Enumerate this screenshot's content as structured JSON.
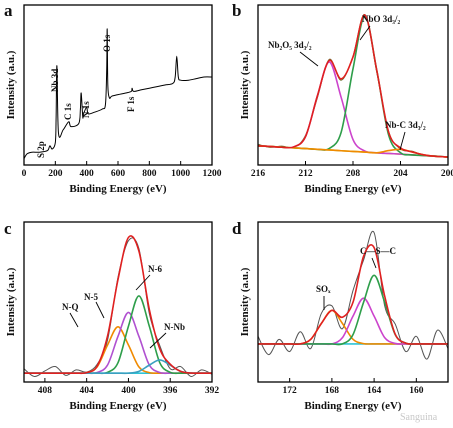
{
  "chart_data": [
    {
      "type": "line",
      "panel": "a",
      "xlabel": "Binding Energy (eV)",
      "ylabel": "Intensity (a.u.)",
      "xlim": [
        0,
        1200
      ],
      "xticks": [
        0,
        200,
        400,
        600,
        800,
        1000,
        1200
      ],
      "ylim": [
        0,
        100
      ],
      "annotations": [
        "S 2p",
        "Nb 3d",
        "C 1s",
        "N 1s",
        "O 1s",
        "F 1s"
      ],
      "x": [
        0,
        20,
        50,
        100,
        150,
        165,
        180,
        200,
        205,
        210,
        220,
        250,
        285,
        300,
        350,
        360,
        365,
        375,
        380,
        400,
        410,
        450,
        500,
        520,
        528,
        531,
        535,
        545,
        560,
        600,
        650,
        685,
        690,
        700,
        750,
        800,
        850,
        900,
        950,
        965,
        975,
        985,
        1000,
        1050,
        1100,
        1150,
        1200
      ],
      "series": [
        {
          "color": "#000000",
          "values": [
            4,
            7,
            8,
            8,
            9,
            12,
            10,
            14,
            30,
            62,
            20,
            22,
            27,
            24,
            26,
            35,
            45,
            30,
            32,
            36,
            32,
            33,
            35,
            38,
            60,
            85,
            50,
            42,
            43,
            44,
            45,
            46,
            48,
            46,
            47,
            48,
            49,
            50,
            51,
            55,
            68,
            55,
            53,
            53,
            54,
            55,
            55
          ]
        }
      ]
    },
    {
      "type": "line",
      "panel": "b",
      "xlabel": "Binding Energy (eV)",
      "ylabel": "Intensity (a.u.)",
      "xlim": [
        216,
        200
      ],
      "xticks": [
        216,
        212,
        208,
        204,
        200
      ],
      "ylim": [
        0,
        100
      ],
      "annotations": [
        "Nb₂O₅ 3d₃/₂",
        "NbO 3d₃/₂",
        "Nb-C 3d₃/₂"
      ],
      "x": [
        216,
        215,
        214,
        213,
        212,
        211,
        210,
        209,
        208,
        207,
        206,
        205,
        204,
        203,
        202,
        201,
        200
      ],
      "series": [
        {
          "color": "#6b6b2a",
          "values": [
            13,
            11,
            11.8,
            11,
            18.5,
            42,
            66,
            53,
            68,
            94,
            58,
            21,
            10,
            8.6,
            6,
            5.8,
            4.6
          ]
        },
        {
          "color": "#c8b400",
          "values": [
            12,
            11.6,
            11.1,
            10.7,
            10.3,
            9.8,
            9.4,
            8.9,
            8.5,
            8.1,
            7.6,
            7.2,
            6.8,
            6.3,
            5.9,
            5.4,
            5
          ]
        },
        {
          "color": "#cc44cc",
          "values": [
            12,
            11.6,
            11.1,
            11.3,
            17.7,
            43.2,
            64.4,
            42.3,
            15.9,
            8.7,
            7.6,
            7.2,
            6.8,
            6.3,
            5.9,
            5.4,
            5
          ]
        },
        {
          "color": "#2e9e4a",
          "values": [
            12,
            11.6,
            11.1,
            10.7,
            10.3,
            9.8,
            10.3,
            20.4,
            60.1,
            93.1,
            59.2,
            18.7,
            7.7,
            6.3,
            5.9,
            5.4,
            5
          ]
        },
        {
          "color": "#f08a00",
          "values": [
            12,
            11.6,
            11.1,
            10.7,
            10.3,
            9.8,
            9.4,
            8.9,
            8.5,
            8.1,
            7.6,
            9.0,
            9.8,
            8.1,
            6.3,
            5.4,
            5
          ]
        },
        {
          "color": "#e02020",
          "values": [
            12,
            11.6,
            11.1,
            11.3,
            17.7,
            43.2,
            65.3,
            53.8,
            67.5,
            93.7,
            59.2,
            20.5,
            10.7,
            8.1,
            6.3,
            5.4,
            5
          ]
        }
      ]
    },
    {
      "type": "line",
      "panel": "c",
      "xlabel": "Binding Energy (eV)",
      "ylabel": "Intensity (a.u.)",
      "xlim": [
        410,
        392
      ],
      "xticks": [
        408,
        404,
        400,
        396,
        392
      ],
      "ylim": [
        0,
        145
      ],
      "annotations": [
        "N-5",
        "N-6",
        "N-Q",
        "N-Nb"
      ],
      "x": [
        410,
        409,
        408,
        407,
        406,
        405,
        404,
        403,
        402,
        401,
        400,
        399,
        398,
        397,
        396,
        395,
        394,
        393,
        392
      ],
      "series": [
        {
          "color": "#555555",
          "values": [
            12,
            5,
            10,
            14,
            6,
            11,
            9,
            16,
            38,
            95,
            128,
            121,
            62,
            33,
            12,
            14,
            5,
            11,
            7
          ]
        },
        {
          "color": "#2ec4d6",
          "values": [
            8,
            8,
            8,
            8,
            8,
            8,
            8,
            8,
            8,
            8,
            8,
            8,
            8,
            8,
            8,
            8,
            8,
            8,
            8
          ]
        },
        {
          "color": "#f08a00",
          "values": [
            8,
            8,
            8,
            8,
            8,
            8,
            8.5,
            13.7,
            33.5,
            50,
            33.5,
            13.7,
            8.5,
            8,
            8,
            8,
            8,
            8,
            8
          ]
        },
        {
          "color": "#b050d0",
          "values": [
            8,
            8,
            8,
            8,
            8,
            8,
            8,
            8.6,
            15.4,
            41.4,
            63,
            41.4,
            15.4,
            8.6,
            8,
            8,
            8,
            8,
            8
          ]
        },
        {
          "color": "#2e9e4a",
          "values": [
            8,
            8,
            8,
            8,
            8,
            8,
            8,
            8,
            8.8,
            17.5,
            50.5,
            78,
            50.5,
            17.5,
            8.8,
            8,
            8,
            8,
            8
          ]
        },
        {
          "color": "#3aa0c0",
          "values": [
            8,
            8,
            8,
            8,
            8,
            8,
            8,
            8,
            8,
            8,
            8,
            9.6,
            15.3,
            20,
            15.3,
            9.6,
            8.1,
            8,
            8
          ]
        },
        {
          "color": "#e02020",
          "values": [
            8,
            8,
            8,
            8,
            8,
            8,
            8.5,
            14.3,
            41.7,
            92.9,
            131,
            118.7,
            65.7,
            30.1,
            16.1,
            9.6,
            8.1,
            8,
            8
          ]
        }
      ]
    },
    {
      "type": "line",
      "panel": "d",
      "xlabel": "Binding Energy (eV)",
      "ylabel": "Intensity (a.u.)",
      "xlim": [
        175,
        157
      ],
      "xticks": [
        172,
        168,
        164,
        160
      ],
      "ylim": [
        0,
        105
      ],
      "annotations": [
        "SOₓ",
        "C—S—C"
      ],
      "x": [
        175,
        174,
        173,
        172,
        171,
        170,
        169,
        168,
        167,
        166,
        165,
        164,
        163,
        162,
        161,
        160,
        159,
        158,
        157
      ],
      "series": [
        {
          "color": "#555555",
          "values": [
            30,
            18,
            28,
            20,
            33,
            22,
            45,
            50,
            35,
            60,
            80,
            98,
            50,
            38,
            20,
            30,
            15,
            34,
            22
          ]
        },
        {
          "color": "#2ec4d6",
          "values": [
            25,
            25,
            25,
            25,
            25,
            25,
            25,
            25,
            25,
            25,
            25,
            25,
            25,
            25,
            25,
            25,
            25,
            25,
            25
          ]
        },
        {
          "color": "#f08a00",
          "values": [
            25,
            25,
            25,
            25,
            25,
            28,
            38.4,
            47,
            38.4,
            28,
            25.2,
            25,
            25,
            25,
            25,
            25,
            25,
            25,
            25
          ]
        },
        {
          "color": "#cc44cc",
          "values": [
            25,
            25,
            25,
            25,
            25,
            25,
            25,
            25,
            29.1,
            43.2,
            55,
            43.2,
            29.1,
            25.3,
            25,
            25,
            25,
            25,
            25
          ]
        },
        {
          "color": "#2e9e4a",
          "values": [
            25,
            25,
            25,
            25,
            25,
            25,
            25,
            25,
            25,
            31.1,
            52.3,
            70,
            52.3,
            31.1,
            25.5,
            25,
            25,
            25,
            25
          ]
        },
        {
          "color": "#e02020",
          "values": [
            25,
            25,
            25,
            25,
            25,
            28,
            38.4,
            47,
            42.5,
            52.3,
            82.5,
            88.2,
            56.4,
            31.4,
            25.5,
            25,
            25,
            25,
            25
          ]
        }
      ]
    }
  ],
  "watermark": "Sanguina"
}
